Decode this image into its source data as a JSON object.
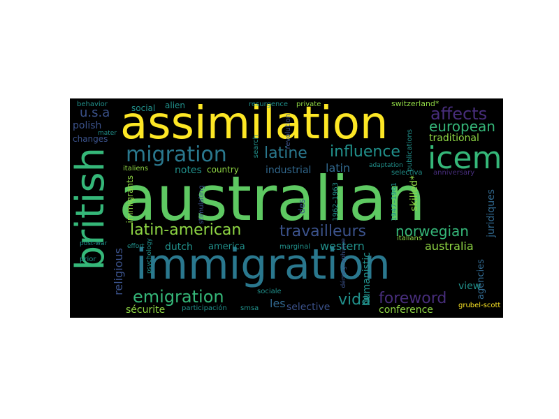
{
  "colors": {
    "background": "#000000",
    "yellow": "#fde725",
    "light_green": "#8fd744",
    "green": "#5ec962",
    "green_teal": "#35b779",
    "teal": "#21918c",
    "blue_teal": "#2a788e",
    "blue": "#31688e",
    "indigo": "#3b528b",
    "purple": "#472d7b",
    "dark_purple": "#440154"
  },
  "words": [
    {
      "text": "australian",
      "color": "green",
      "rotated": false
    },
    {
      "text": "assimilation",
      "color": "yellow",
      "rotated": false
    },
    {
      "text": "immigration",
      "color": "blue_teal",
      "rotated": false
    },
    {
      "text": "british",
      "color": "green_teal",
      "rotated": true
    },
    {
      "text": "migration",
      "color": "blue_teal",
      "rotated": false
    },
    {
      "text": "icem",
      "color": "green_teal",
      "rotated": false
    },
    {
      "text": "latine",
      "color": "blue_teal",
      "rotated": false
    },
    {
      "text": "influence",
      "color": "teal",
      "rotated": false
    },
    {
      "text": "affects",
      "color": "purple",
      "rotated": false
    },
    {
      "text": "european",
      "color": "green_teal",
      "rotated": false
    },
    {
      "text": "traditional",
      "color": "light_green",
      "rotated": false
    },
    {
      "text": "latin-american",
      "color": "light_green",
      "rotated": false
    },
    {
      "text": "travailleurs",
      "color": "indigo",
      "rotated": false
    },
    {
      "text": "norwegian",
      "color": "green_teal",
      "rotated": false
    },
    {
      "text": "emigration",
      "color": "green_teal",
      "rotated": false
    },
    {
      "text": "foreword",
      "color": "purple",
      "rotated": false
    },
    {
      "text": "vida",
      "color": "teal",
      "rotated": false
    },
    {
      "text": "australia",
      "color": "light_green",
      "rotated": false
    },
    {
      "text": "western",
      "color": "teal",
      "rotated": false
    },
    {
      "text": "conference",
      "color": "light_green",
      "rotated": false
    },
    {
      "text": "selective",
      "color": "indigo",
      "rotated": false
    },
    {
      "text": "les",
      "color": "blue",
      "rotated": false
    },
    {
      "text": "sécurite",
      "color": "light_green",
      "rotated": false
    },
    {
      "text": "latin",
      "color": "blue",
      "rotated": false
    },
    {
      "text": "industrial",
      "color": "blue",
      "rotated": false
    },
    {
      "text": "notes",
      "color": "teal",
      "rotated": false
    },
    {
      "text": "country",
      "color": "light_green",
      "rotated": false
    },
    {
      "text": "dutch",
      "color": "teal",
      "rotated": false
    },
    {
      "text": "america",
      "color": "teal",
      "rotated": false
    },
    {
      "text": "religious",
      "color": "indigo",
      "rotated": true
    },
    {
      "text": "immigrants",
      "color": "light_green",
      "rotated": true
    },
    {
      "text": "polish",
      "color": "indigo",
      "rotated": false
    },
    {
      "text": "u.s.a",
      "color": "indigo",
      "rotated": false
    },
    {
      "text": "changes",
      "color": "indigo",
      "rotated": false
    },
    {
      "text": "social",
      "color": "teal",
      "rotated": false
    },
    {
      "text": "alien",
      "color": "teal",
      "rotated": false
    },
    {
      "text": "behavior",
      "color": "teal",
      "rotated": false
    },
    {
      "text": "resurgence",
      "color": "teal",
      "rotated": false
    },
    {
      "text": "private",
      "color": "light_green",
      "rotated": false
    },
    {
      "text": "switzerland*",
      "color": "light_green",
      "rotated": false
    },
    {
      "text": "skilled*",
      "color": "light_green",
      "rotated": true
    },
    {
      "text": "juridiques",
      "color": "blue",
      "rotated": true
    },
    {
      "text": "agencies",
      "color": "blue",
      "rotated": true
    },
    {
      "text": "view",
      "color": "teal",
      "rotated": false
    },
    {
      "text": "humanistic",
      "color": "teal",
      "rotated": true
    },
    {
      "text": "des",
      "color": "indigo",
      "rotated": true
    },
    {
      "text": "anniversary",
      "color": "purple",
      "rotated": false
    },
    {
      "text": "grubel-scott",
      "color": "yellow",
      "rotated": false
    },
    {
      "text": "italiens",
      "color": "light_green",
      "rotated": false
    },
    {
      "text": "italians",
      "color": "light_green",
      "rotated": false
    },
    {
      "text": "participación",
      "color": "teal",
      "rotated": false
    },
    {
      "text": "smsa",
      "color": "teal",
      "rotated": false
    },
    {
      "text": "sociale",
      "color": "teal",
      "rotated": false
    },
    {
      "text": "marginal",
      "color": "teal",
      "rotated": false
    },
    {
      "text": "1947–1961",
      "color": "teal",
      "rotated": true
    },
    {
      "text": "1962–1963",
      "color": "teal",
      "rotated": true
    },
    {
      "text": "selectiva",
      "color": "teal",
      "rotated": false
    },
    {
      "text": "stimulating",
      "color": "indigo",
      "rotated": true
    },
    {
      "text": "revolution",
      "color": "indigo",
      "rotated": true
    },
    {
      "text": "publications",
      "color": "teal",
      "rotated": true
    },
    {
      "text": "search",
      "color": "teal",
      "rotated": true
    },
    {
      "text": "psychology",
      "color": "teal",
      "rotated": true
    },
    {
      "text": "post-war",
      "color": "teal",
      "rotated": false
    },
    {
      "text": "effort",
      "color": "teal",
      "rotated": false
    },
    {
      "text": "prior",
      "color": "teal",
      "rotated": false
    },
    {
      "text": "démographique",
      "color": "indigo",
      "rotated": true
    },
    {
      "text": "adaptation",
      "color": "teal",
      "rotated": false
    },
    {
      "text": "mater",
      "color": "teal",
      "rotated": false
    }
  ]
}
